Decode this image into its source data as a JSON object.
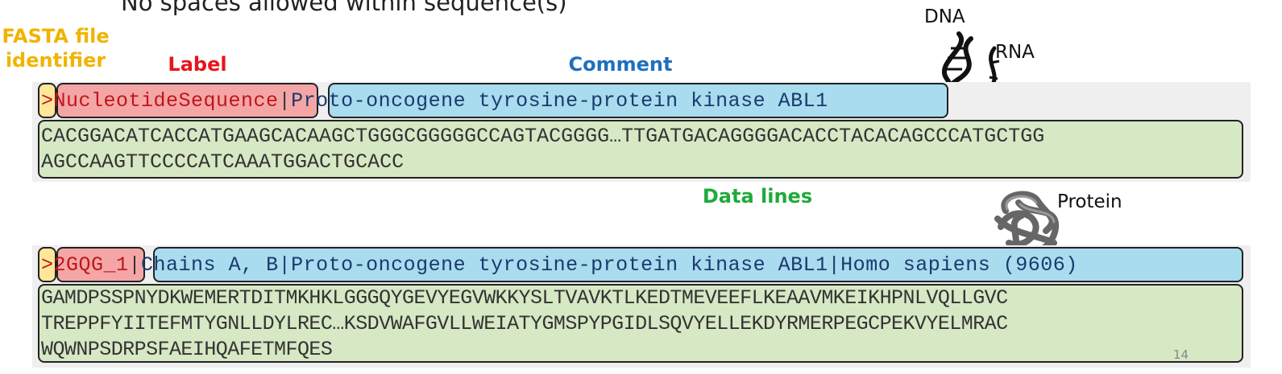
{
  "slide_top_text": "No spaces allowed within sequence(s)",
  "headers": {
    "identifier_line1": "FASTA file",
    "identifier_line2": "identifier",
    "label": "Label",
    "comment": "Comment",
    "data_lines": "Data lines"
  },
  "molecule_labels": {
    "dna": "DNA",
    "rna": "RNA",
    "protein": "Protein"
  },
  "nucleotide": {
    "gt": ">",
    "label": "NucleotideSequence",
    "separator": "|",
    "comment": "Proto-oncogene tyrosine-protein kinase ABL1",
    "lines": [
      "CACGGACATCACCATGAAGCACAAGCTGGGCGGGGGCCAGTACGGGG…TTGATGACAGGGGACACCTACACAGCCCATGCTGG",
      "AGCCAAGTTCCCCATCAAATGGACTGCACC"
    ]
  },
  "protein": {
    "gt": ">",
    "label": "2GQG_1",
    "separator": "|",
    "comment": "Chains A, B|Proto-oncogene tyrosine-protein kinase ABL1|Homo sapiens (9606)",
    "lines": [
      "GAMDPSSPNYDKWEMERTDITMKHKLGGGQYGEVYEGVWKKYSLTVAVKTLKEDTMEVEEFLKEAAVMKEIKHPNLVQLLGVC",
      "TREPPFYIITEFMTYGNLLDYLREC…KSDVWAFGVLLWEIATYGMSPYPGIDLSQVYELLEKDYRMERPEGCPEKVYELMRAC",
      "WQWNPSDRPSFAEIHQAFETMFQES"
    ]
  },
  "page_number": "14",
  "colors": {
    "identifier": "#f0b400",
    "label": "#e8141c",
    "comment": "#1f6fbf",
    "data_lines": "#1faa3a"
  }
}
